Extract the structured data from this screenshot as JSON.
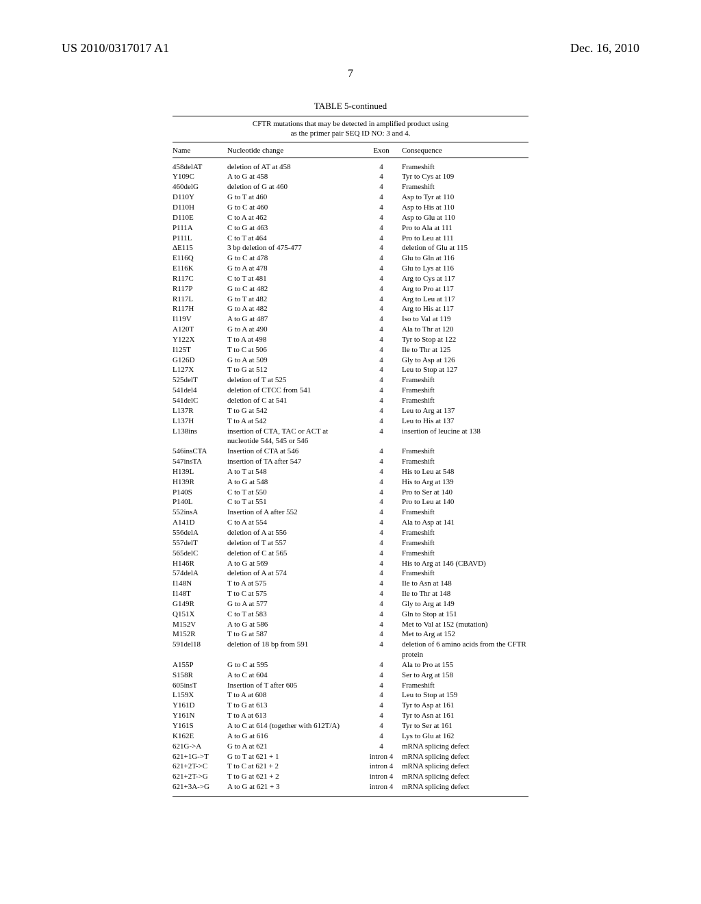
{
  "header": {
    "left": "US 2010/0317017 A1",
    "right": "Dec. 16, 2010",
    "page_number": "7"
  },
  "table": {
    "title": "TABLE 5-continued",
    "subtitle_line1": "CFTR mutations that may be detected in amplified product using",
    "subtitle_line2": "as the primer pair SEQ ID NO: 3 and 4.",
    "columns": [
      "Name",
      "Nucleotide change",
      "Exon",
      "Consequence"
    ],
    "rows": [
      [
        "458delAT",
        "deletion of AT at 458",
        "4",
        "Frameshift"
      ],
      [
        "Y109C",
        "A to G at 458",
        "4",
        "Tyr to Cys at 109"
      ],
      [
        "460delG",
        "deletion of G at 460",
        "4",
        "Frameshift"
      ],
      [
        "D110Y",
        "G to T at 460",
        "4",
        "Asp to Tyr at 110"
      ],
      [
        "D110H",
        "G to C at 460",
        "4",
        "Asp to His at 110"
      ],
      [
        "D110E",
        "C to A at 462",
        "4",
        "Asp to Glu at 110"
      ],
      [
        "P111A",
        "C to G at 463",
        "4",
        "Pro to Ala at 111"
      ],
      [
        "P111L",
        "C to T at 464",
        "4",
        "Pro to Leu at 111"
      ],
      [
        "ΔE115",
        "3 bp deletion of 475-477",
        "4",
        "deletion of Glu at 115"
      ],
      [
        "E116Q",
        "G to C at 478",
        "4",
        "Glu to Gln at 116"
      ],
      [
        "E116K",
        "G to A at 478",
        "4",
        "Glu to Lys at 116"
      ],
      [
        "R117C",
        "C to T at 481",
        "4",
        "Arg to Cys at 117"
      ],
      [
        "R117P",
        "G to C at 482",
        "4",
        "Arg to Pro at 117"
      ],
      [
        "R117L",
        "G to T at 482",
        "4",
        "Arg to Leu at 117"
      ],
      [
        "R117H",
        "G to A at 482",
        "4",
        "Arg to His at 117"
      ],
      [
        "I119V",
        "A to G at 487",
        "4",
        "Iso to Val at 119"
      ],
      [
        "A120T",
        "G to A at 490",
        "4",
        "Ala to Thr at 120"
      ],
      [
        "Y122X",
        "T to A at 498",
        "4",
        "Tyr to Stop at 122"
      ],
      [
        "I125T",
        "T to C at 506",
        "4",
        "Ile to Thr at 125"
      ],
      [
        "G126D",
        "G to A at 509",
        "4",
        "Gly to Asp at 126"
      ],
      [
        "L127X",
        "T to G at 512",
        "4",
        "Leu to Stop at 127"
      ],
      [
        "525delT",
        "deletion of T at 525",
        "4",
        "Frameshift"
      ],
      [
        "541del4",
        "deletion of CTCC from 541",
        "4",
        "Frameshift"
      ],
      [
        "541delC",
        "deletion of C at 541",
        "4",
        "Frameshift"
      ],
      [
        "L137R",
        "T to G at 542",
        "4",
        "Leu to Arg at 137"
      ],
      [
        "L137H",
        "T to A at 542",
        "4",
        "Leu to His at 137"
      ],
      [
        "L138ins",
        "insertion of CTA, TAC or ACT at nucleotide 544, 545 or 546",
        "4",
        "insertion of leucine at 138"
      ],
      [
        "546insCTA",
        "Insertion of CTA at 546",
        "4",
        "Frameshift"
      ],
      [
        "547insTA",
        "insertion of TA after 547",
        "4",
        "Frameshift"
      ],
      [
        "H139L",
        "A to T at 548",
        "4",
        "His to Leu at 548"
      ],
      [
        "H139R",
        "A to G at 548",
        "4",
        "His to Arg at 139"
      ],
      [
        "P140S",
        "C to T at 550",
        "4",
        "Pro to Ser at 140"
      ],
      [
        "P140L",
        "C to T at 551",
        "4",
        "Pro to Leu at 140"
      ],
      [
        "552insA",
        "Insertion of A after 552",
        "4",
        "Frameshift"
      ],
      [
        "A141D",
        "C to A at 554",
        "4",
        "Ala to Asp at 141"
      ],
      [
        "556delA",
        "deletion of A at 556",
        "4",
        "Frameshift"
      ],
      [
        "557delT",
        "deletion of T at 557",
        "4",
        "Frameshift"
      ],
      [
        "565delC",
        "deletion of C at 565",
        "4",
        "Frameshift"
      ],
      [
        "H146R",
        "A to G at 569",
        "4",
        "His to Arg at 146 (CBAVD)"
      ],
      [
        "574delA",
        "deletion of A at 574",
        "4",
        "Frameshift"
      ],
      [
        "I148N",
        "T to A at 575",
        "4",
        "Ile to Asn at 148"
      ],
      [
        "I148T",
        "T to C at 575",
        "4",
        "Ile to Thr at 148"
      ],
      [
        "G149R",
        "G to A at 577",
        "4",
        "Gly to Arg at 149"
      ],
      [
        "Q151X",
        "C to T at 583",
        "4",
        "Gln to Stop at 151"
      ],
      [
        "M152V",
        "A to G at 586",
        "4",
        "Met to Val at 152 (mutation)"
      ],
      [
        "M152R",
        "T to G at 587",
        "4",
        "Met to Arg at 152"
      ],
      [
        "591del18",
        "deletion of 18 bp from 591",
        "4",
        "deletion of 6 amino acids from the CFTR protein"
      ],
      [
        "A155P",
        "G to C at 595",
        "4",
        "Ala to Pro at 155"
      ],
      [
        "S158R",
        "A to C at 604",
        "4",
        "Ser to Arg at 158"
      ],
      [
        "605insT",
        "Insertion of T after 605",
        "4",
        "Frameshift"
      ],
      [
        "L159X",
        "T to A at 608",
        "4",
        "Leu to Stop at 159"
      ],
      [
        "Y161D",
        "T to G at 613",
        "4",
        "Tyr to Asp at 161"
      ],
      [
        "Y161N",
        "T to A at 613",
        "4",
        "Tyr to Asn at 161"
      ],
      [
        "Y161S",
        "A to C at 614 (together with 612T/A)",
        "4",
        "Tyr to Ser at 161"
      ],
      [
        "K162E",
        "A to G at 616",
        "4",
        "Lys to Glu at 162"
      ],
      [
        "621G->A",
        "G to A at 621",
        "4",
        "mRNA splicing defect"
      ],
      [
        "621+1G->T",
        "G to T at 621 + 1",
        "intron 4",
        "mRNA splicing defect"
      ],
      [
        "621+2T->C",
        "T to C at 621 + 2",
        "intron 4",
        "mRNA splicing defect"
      ],
      [
        "621+2T->G",
        "T to G at 621 + 2",
        "intron 4",
        "mRNA splicing defect"
      ],
      [
        "621+3A->G",
        "A to G at 621 + 3",
        "intron 4",
        "mRNA splicing defect"
      ]
    ]
  }
}
